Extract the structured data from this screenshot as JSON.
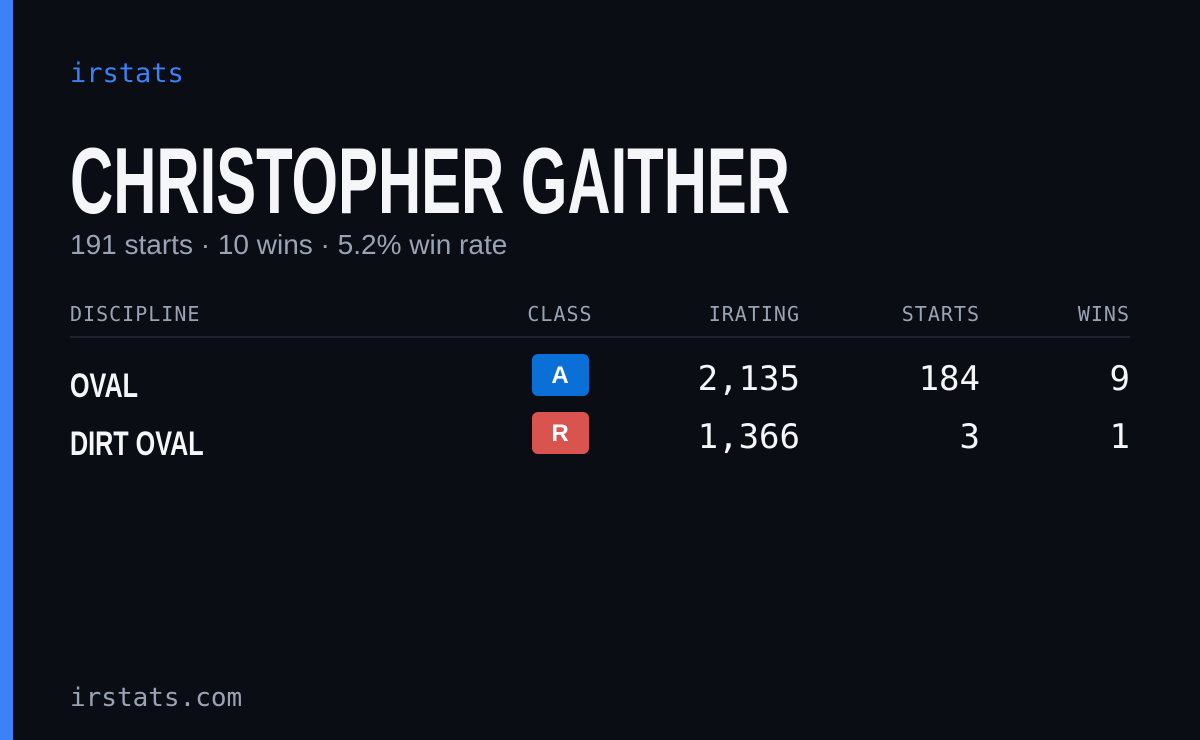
{
  "brand": "irstats",
  "title": "CHRISTOPHER GAITHER",
  "subtitle": "191 starts · 10 wins · 5.2% win rate",
  "table": {
    "headers": [
      "DISCIPLINE",
      "CLASS",
      "IRATING",
      "STARTS",
      "WINS"
    ],
    "rows": [
      [
        "OVAL",
        "A",
        "2,135",
        "184",
        "9"
      ],
      [
        "DIRT OVAL",
        "R",
        "1,366",
        "3",
        "1"
      ]
    ]
  },
  "footer": "irstats.com"
}
